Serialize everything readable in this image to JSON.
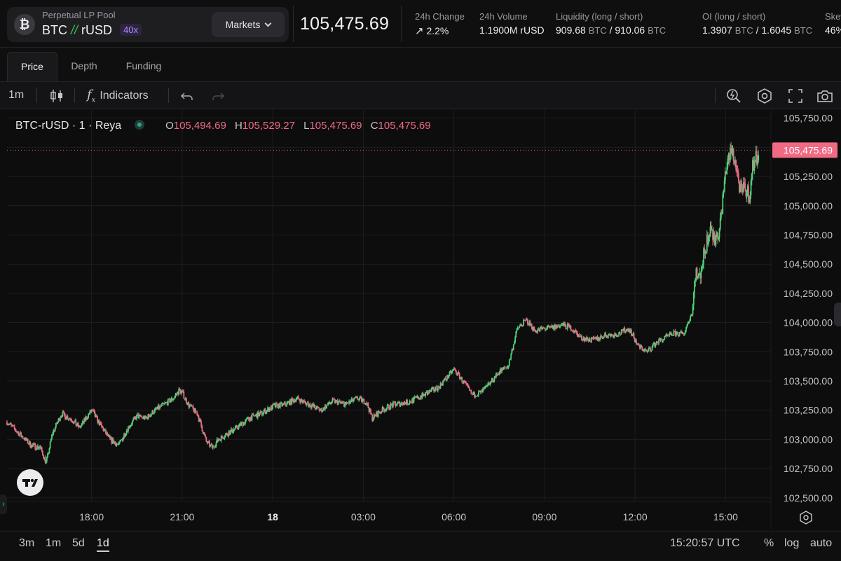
{
  "market": {
    "pool_type": "Perpetual LP Pool",
    "base": "BTC",
    "slash": "//",
    "quote": "rUSD",
    "leverage": "40x",
    "markets_label": "Markets",
    "coin_icon": "bitcoin-icon",
    "last_price": "105,475.69"
  },
  "stats": {
    "change": {
      "label": "24h Change",
      "value": "2.2%"
    },
    "volume": {
      "label": "24h Volume",
      "value": "1.1900M rUSD"
    },
    "liquidity": {
      "label": "Liquidity (long / short)",
      "long": "909.68",
      "short": "910.06",
      "unit": "BTC",
      "sep": "/"
    },
    "oi": {
      "label": "OI (long / short)",
      "long": "1.3907",
      "short": "1.6045",
      "unit": "BTC",
      "sep": "/"
    },
    "skew": {
      "label": "Skew",
      "value": "46%"
    }
  },
  "tabs": [
    "Price",
    "Depth",
    "Funding"
  ],
  "toolbar": {
    "interval": "1m",
    "indicators_label": "Indicators"
  },
  "legend": {
    "symbol": "BTC-rUSD",
    "interval": "1",
    "exchange": "Reya",
    "sep": "·",
    "open_label": "O",
    "open": "105,494.69",
    "high_label": "H",
    "high": "105,529.27",
    "low_label": "L",
    "low": "105,475.69",
    "close_label": "C",
    "close": "105,475.69"
  },
  "bottom": {
    "ranges": [
      "3m",
      "1m",
      "5d",
      "1d"
    ],
    "active_range": "1d",
    "time": "15:20:57 UTC",
    "pct": "%",
    "log": "log",
    "auto": "auto"
  },
  "colors": {
    "up": "#34c759",
    "down": "#f06a84",
    "grid": "#1e1e21",
    "price_tag": "#f06a84"
  },
  "chart_data": {
    "type": "line",
    "style": "candlestick",
    "title": "",
    "xlabel": "",
    "ylabel": "",
    "x_ticks": [
      "18:00",
      "21:00",
      "18",
      "03:00",
      "06:00",
      "09:00",
      "12:00",
      "15:00"
    ],
    "x_tick_hours": [
      18,
      21,
      24,
      27,
      30,
      33,
      36,
      39
    ],
    "xlim_hours": [
      15.2,
      40.5
    ],
    "y_ticks": [
      102500,
      102750,
      103000,
      103250,
      103500,
      103750,
      104000,
      104250,
      104500,
      104750,
      105000,
      105250,
      105500,
      105750
    ],
    "y_tick_labels": [
      "102,500.00",
      "102,750.00",
      "103,000.00",
      "103,250.00",
      "103,500.00",
      "103,750.00",
      "104,000.00",
      "104,250.00",
      "104,500.00",
      "104,750.00",
      "105,000.00",
      "105,250.00",
      "105,500.00",
      "105,750.00"
    ],
    "ylim": [
      102475,
      105820
    ],
    "current_price": 105475.69,
    "current_price_label": "105,475.69",
    "series": [
      {
        "x_hours": [
          15.2,
          15.6,
          16.0,
          16.3,
          16.5,
          16.7,
          17.0,
          17.3,
          17.6,
          18.0,
          18.3,
          18.6,
          18.9,
          19.2,
          19.5,
          19.8,
          20.1,
          20.4,
          20.7,
          20.9,
          21.0,
          21.2,
          21.5,
          21.8,
          22.0,
          22.2,
          22.5,
          22.8,
          23.2,
          23.6,
          24.0,
          24.4,
          24.8,
          25.2,
          25.6,
          26.0,
          26.4,
          26.8,
          27.1,
          27.3,
          27.6,
          28.0,
          28.5,
          29.0,
          29.5,
          30.0,
          30.3,
          30.6,
          30.9,
          31.1,
          31.5,
          31.8,
          32.1,
          32.4,
          32.7,
          33.0,
          33.3,
          33.6,
          33.9,
          34.2,
          34.6,
          35.0,
          35.4,
          35.8,
          36.1,
          36.4,
          36.7,
          37.0,
          37.3,
          37.6,
          37.9,
          38.0,
          38.1,
          38.3,
          38.5,
          38.6,
          38.8,
          38.9,
          39.0,
          39.2,
          39.3,
          39.4,
          39.5,
          39.65,
          39.8,
          39.9,
          40.0,
          40.1
        ],
        "values": [
          103150,
          103050,
          102950,
          102930,
          102800,
          103050,
          103220,
          103180,
          103100,
          103250,
          103120,
          103000,
          102950,
          103100,
          103200,
          103180,
          103250,
          103300,
          103350,
          103420,
          103400,
          103300,
          103220,
          102980,
          102930,
          103000,
          103050,
          103100,
          103180,
          103220,
          103280,
          103300,
          103350,
          103300,
          103250,
          103330,
          103300,
          103350,
          103320,
          103180,
          103250,
          103300,
          103320,
          103380,
          103450,
          103600,
          103500,
          103380,
          103400,
          103450,
          103580,
          103630,
          103950,
          104020,
          103930,
          103950,
          103960,
          103980,
          103950,
          103870,
          103850,
          103890,
          103900,
          103950,
          103800,
          103750,
          103830,
          103870,
          103910,
          103900,
          104100,
          104450,
          104360,
          104600,
          104850,
          104700,
          104800,
          105050,
          105300,
          105480,
          105400,
          105250,
          105100,
          105150,
          105080,
          105350,
          105400,
          105476
        ],
        "volatility": 22
      }
    ]
  }
}
